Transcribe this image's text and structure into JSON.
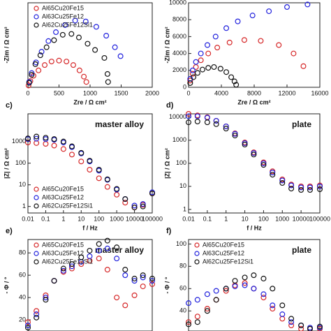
{
  "chart_data": [
    {
      "type": "scatter",
      "xlabel": "Zre / Ω cm²",
      "ylabel": "-Zim / Ω cm²",
      "xlim": [
        0,
        2000
      ],
      "xticks": [
        0,
        500,
        1000,
        1500,
        2000
      ],
      "ylim": [
        0,
        950
      ],
      "legend": "upper left",
      "series": [
        {
          "name": "Al65Cu20Fe15",
          "color": "#d62728",
          "x": [
            10,
            40,
            90,
            170,
            270,
            380,
            500,
            620,
            730,
            830,
            900,
            940
          ],
          "values": [
            20,
            70,
            130,
            190,
            250,
            290,
            300,
            290,
            250,
            190,
            120,
            60
          ]
        },
        {
          "name": "Al63Cu25Fe12",
          "color": "#2222dd",
          "x": [
            20,
            60,
            130,
            220,
            330,
            450,
            600,
            760,
            930,
            1100,
            1260,
            1400,
            1490
          ],
          "values": [
            60,
            160,
            280,
            400,
            520,
            620,
            700,
            750,
            740,
            680,
            580,
            450,
            350
          ]
        },
        {
          "name": "Al62Cu25Fe12Si1",
          "color": "#111111",
          "x": [
            20,
            60,
            120,
            200,
            300,
            420,
            560,
            700,
            820,
            960,
            1080,
            1230,
            1280,
            1290
          ],
          "values": [
            50,
            140,
            260,
            360,
            450,
            530,
            590,
            600,
            560,
            490,
            420,
            330,
            150,
            60
          ]
        }
      ]
    },
    {
      "type": "scatter",
      "xlabel": "Zre / Ω cm²",
      "ylabel": "-Zim / Ω cm²",
      "xlim": [
        0,
        16000
      ],
      "xticks": [
        0,
        4000,
        8000,
        12000,
        16000
      ],
      "ylim": [
        0,
        10000
      ],
      "yticks": [
        0,
        2000,
        4000,
        6000,
        8000,
        10000
      ],
      "series": [
        {
          "name": "Al65Cu20Fe15",
          "color": "#d62728",
          "x": [
            200,
            500,
            900,
            1500,
            2400,
            3500,
            5000,
            6800,
            8800,
            11000,
            12800,
            14000
          ],
          "values": [
            800,
            1600,
            2400,
            3200,
            4000,
            4700,
            5300,
            5600,
            5500,
            5000,
            4000,
            2500
          ]
        },
        {
          "name": "Al63Cu25Fe12",
          "color": "#2222dd",
          "x": [
            200,
            500,
            900,
            1500,
            2300,
            3300,
            4600,
            6000,
            7800,
            9800,
            12000,
            14500
          ],
          "values": [
            1000,
            2000,
            3000,
            4000,
            5000,
            6000,
            7000,
            7800,
            8500,
            9000,
            9500,
            9800
          ]
        },
        {
          "name": "Al62Cu25Fe12Si1",
          "color": "#111111",
          "x": [
            200,
            600,
            1100,
            1700,
            2400,
            3100,
            3900,
            4600,
            5200,
            5600,
            5800
          ],
          "values": [
            500,
            1200,
            1700,
            2100,
            2300,
            2400,
            2200,
            1800,
            1200,
            700,
            300
          ]
        }
      ]
    },
    {
      "type": "scatter",
      "panel": "c)",
      "annotation": "master alloy",
      "xlabel": "f / Hz",
      "ylabel": "|Z| / Ω cm²",
      "xlog": true,
      "ylog": true,
      "xlim": [
        0.01,
        100000
      ],
      "xticks": [
        0.01,
        0.1,
        1,
        10,
        100,
        1000,
        10000,
        100000
      ],
      "ylim": [
        0.5,
        19000
      ],
      "yticks": [
        1,
        10,
        100,
        1000
      ],
      "legend": "lower left",
      "x": [
        0.01,
        0.03,
        0.1,
        0.3,
        1,
        3,
        10,
        30,
        100,
        300,
        1000,
        3000,
        10000,
        30000,
        100000
      ],
      "series": [
        {
          "name": "Al65Cu20Fe15",
          "color": "#d62728",
          "values": [
            900,
            850,
            780,
            650,
            450,
            250,
            120,
            50,
            20,
            8,
            3.5,
            1.5,
            0.9,
            1.2,
            4
          ]
        },
        {
          "name": "Al63Cu25Fe12",
          "color": "#2222dd",
          "values": [
            1300,
            1350,
            1300,
            1200,
            900,
            550,
            280,
            120,
            45,
            17,
            6,
            2.2,
            1.1,
            1.3,
            4.5
          ]
        },
        {
          "name": "Al62Cu25Fe12Si1",
          "color": "#111111",
          "values": [
            1400,
            1700,
            1500,
            1300,
            1000,
            600,
            300,
            130,
            50,
            18,
            6.5,
            2.2,
            0.9,
            1,
            4
          ]
        }
      ]
    },
    {
      "type": "scatter",
      "panel": "d)",
      "annotation": "plate",
      "xlabel": "f / Hz",
      "ylabel": "|Z| / Ω cm²",
      "xlog": true,
      "ylog": true,
      "xlim": [
        0.01,
        100000
      ],
      "xticks": [
        0.01,
        0.1,
        1,
        10,
        100,
        1000,
        10000,
        100000
      ],
      "ylim": [
        0.7,
        14000
      ],
      "yticks": [
        1,
        10,
        100,
        1000,
        10000
      ],
      "x": [
        0.01,
        0.03,
        0.1,
        0.3,
        1,
        3,
        10,
        30,
        100,
        300,
        1000,
        3000,
        10000,
        30000,
        100000
      ],
      "series": [
        {
          "name": "Al65Cu20Fe15",
          "color": "#d62728",
          "values": [
            14000,
            12000,
            10000,
            7000,
            4000,
            2000,
            800,
            300,
            110,
            45,
            20,
            12,
            10,
            10,
            11
          ]
        },
        {
          "name": "Al63Cu25Fe12",
          "color": "#2222dd",
          "values": [
            11000,
            11000,
            9500,
            7000,
            4000,
            1900,
            750,
            280,
            100,
            40,
            18,
            11,
            9,
            9,
            10
          ]
        },
        {
          "name": "Al62Cu25Fe12Si1",
          "color": "#111111",
          "values": [
            6000,
            6500,
            6000,
            5000,
            3200,
            1600,
            650,
            240,
            85,
            32,
            14,
            8,
            7,
            7,
            7.5
          ]
        }
      ]
    },
    {
      "type": "scatter",
      "panel": "e)",
      "annotation": "master alloy",
      "ylabel": "- Φ / °",
      "xlog": true,
      "xlim": [
        0.01,
        100000
      ],
      "ylim": [
        10,
        92
      ],
      "yticks": [
        20,
        40,
        60,
        80
      ],
      "legend": "upper left",
      "x": [
        0.01,
        0.03,
        0.1,
        0.3,
        1,
        3,
        10,
        30,
        100,
        300,
        1000,
        3000,
        10000,
        30000,
        100000
      ],
      "series": [
        {
          "name": "Al65Cu20Fe15",
          "color": "#d62728",
          "values": [
            18,
            28,
            42,
            55,
            63,
            66,
            70,
            73,
            75,
            65,
            40,
            33,
            42,
            50,
            52
          ]
        },
        {
          "name": "Al63Cu25Fe12",
          "color": "#2222dd",
          "values": [
            15,
            25,
            40,
            55,
            64,
            68,
            72,
            77,
            82,
            84,
            75,
            60,
            55,
            58,
            55
          ]
        },
        {
          "name": "Al62Cu25Fe12Si1",
          "color": "#111111",
          "values": [
            13,
            22,
            38,
            55,
            66,
            70,
            76,
            82,
            88,
            91,
            85,
            65,
            57,
            60,
            57
          ]
        }
      ]
    },
    {
      "type": "scatter",
      "panel": "f)",
      "annotation": "plate",
      "ylabel": "- Φ / °",
      "xlog": true,
      "xlim": [
        0.01,
        100000
      ],
      "ylim": [
        22,
        104
      ],
      "yticks": [
        40,
        60,
        80,
        100
      ],
      "legend": "upper left",
      "x": [
        0.01,
        0.03,
        0.1,
        0.3,
        1,
        3,
        10,
        30,
        100,
        300,
        1000,
        3000,
        10000,
        30000,
        100000
      ],
      "series": [
        {
          "name": "Al65Cu20Fe15",
          "color": "#d62728",
          "values": [
            30,
            35,
            42,
            50,
            58,
            63,
            65,
            60,
            52,
            42,
            33,
            27,
            24,
            24,
            24
          ]
        },
        {
          "name": "Al63Cu25Fe12",
          "color": "#2222dd",
          "values": [
            47,
            50,
            55,
            58,
            60,
            62,
            63,
            60,
            55,
            45,
            37,
            30,
            27,
            25,
            25
          ]
        },
        {
          "name": "Al62Cu25Fe12Si1",
          "color": "#111111",
          "values": [
            28,
            30,
            40,
            50,
            60,
            67,
            70,
            72,
            69,
            60,
            45,
            33,
            27,
            24,
            26
          ]
        }
      ]
    }
  ]
}
